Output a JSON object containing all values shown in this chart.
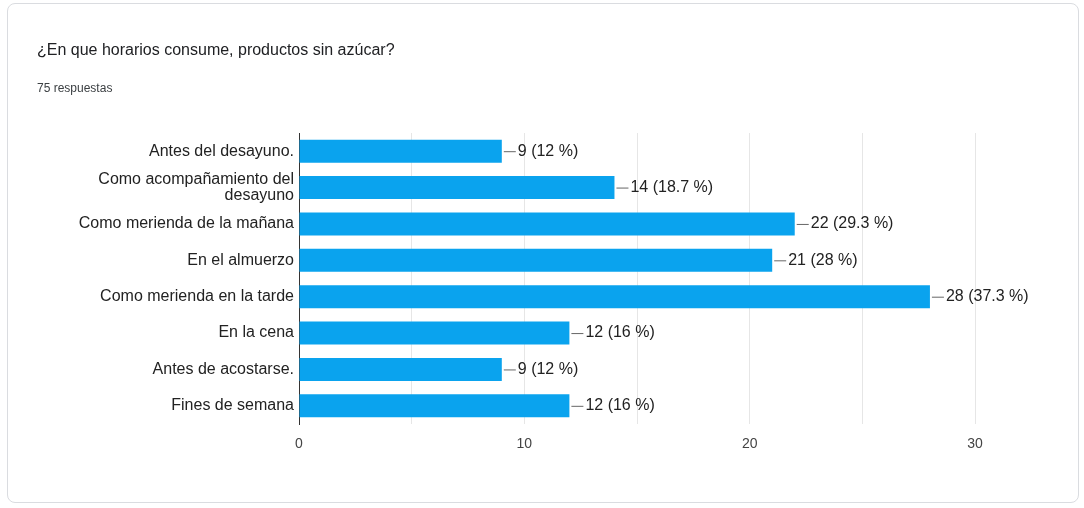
{
  "chart_data": {
    "type": "bar",
    "orientation": "horizontal",
    "title": "¿En que horarios consume, productos sin azúcar?",
    "subtitle": "75 respuestas",
    "categories": [
      "Antes del desayuno.",
      "Como acompañamiento del desayuno",
      "Como merienda de la mañana",
      "En el almuerzo",
      "Como merienda en la tarde",
      "En la cena",
      "Antes de acostarse.",
      "Fines de semana"
    ],
    "values": [
      9,
      14,
      22,
      21,
      28,
      12,
      9,
      12
    ],
    "color": "#0aa3ee",
    "value_labels": [
      "9 (12 %)",
      "14 (18.7 %)",
      "22 (29.3 %)",
      "21 (28 %)",
      "28 (37.3 %)",
      "12 (16 %)",
      "9 (12 %)",
      "12 (16 %)"
    ],
    "xlim": [
      0,
      30
    ],
    "xticks": [
      0,
      {
        "value": 5,
        "label": null
      },
      10,
      {
        "value": 15,
        "label": null
      },
      20,
      {
        "value": 25,
        "label": null
      },
      30
    ],
    "grid": "x"
  }
}
